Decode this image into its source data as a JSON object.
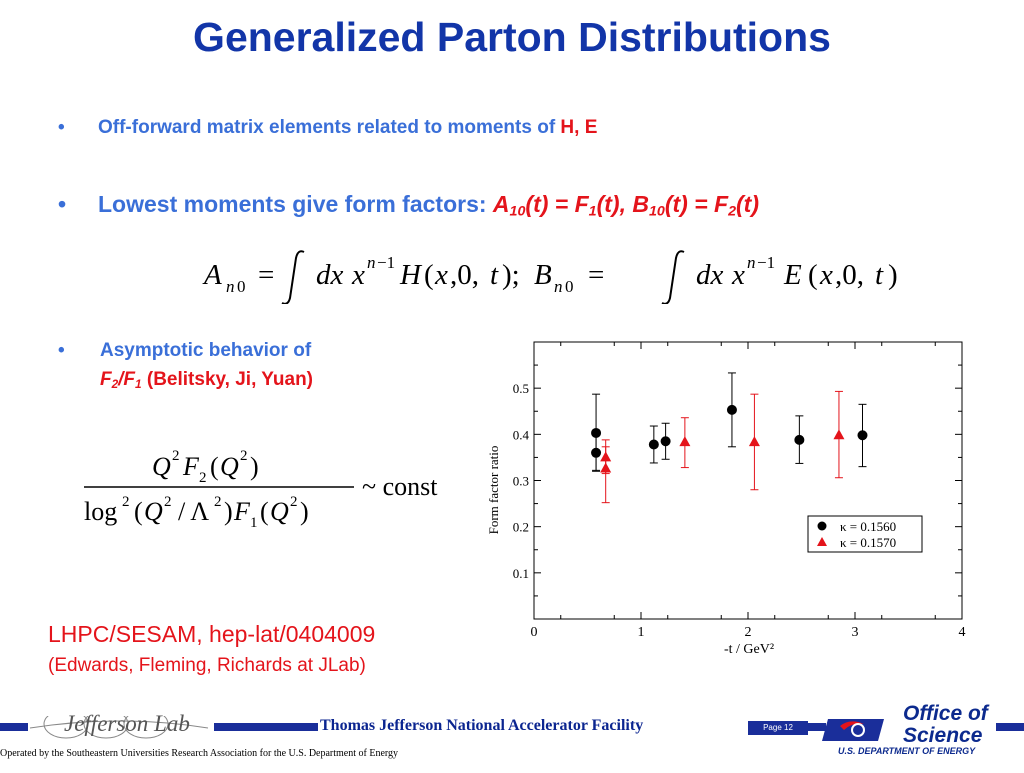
{
  "title": "Generalized Parton Distributions",
  "bullets": {
    "b1_text": "Off-forward matrix elements related to moments of ",
    "b1_red": "H, E",
    "b2_text": "Lowest moments give form factors: ",
    "b3_line1": "Asymptotic behavior of",
    "b3_paren": "(Belitsky, Ji, Yuan)"
  },
  "equation_const": "~ const",
  "references": {
    "line1": "LHPC/SESAM, hep-lat/0404009",
    "line2": "(Edwards, Fleming, Richards at JLab)"
  },
  "footer": {
    "facility": "Thomas Jefferson National Accelerator Facility",
    "page": "Page 12",
    "operated": "Operated by the Southeastern Universities Research Association for the U.S. Department of  Energy",
    "office_line1": "Office of",
    "office_line2": "Science",
    "doe": "U.S. DEPARTMENT OF ENERGY",
    "jlab": "Jefferson Lab"
  },
  "colors": {
    "title": "#1235a8",
    "bullet": "#3a6fd8",
    "accent_red": "#e4141b",
    "navy": "#1a2e9a"
  },
  "chart_data": {
    "type": "scatter",
    "xlabel": "-t / GeV²",
    "ylabel": "Form factor ratio",
    "xlim": [
      0,
      4
    ],
    "ylim": [
      0,
      0.6
    ],
    "xticks": [
      "0",
      "1",
      "2",
      "3",
      "4"
    ],
    "yticks": [
      "0.1",
      "0.2",
      "0.3",
      "0.4",
      "0.5"
    ],
    "series": [
      {
        "name": "κ = 0.1560",
        "color": "#000000",
        "marker": "circle",
        "points": [
          {
            "x": 0.58,
            "y": 0.403,
            "lo": 0.32,
            "hi": 0.487
          },
          {
            "x": 0.58,
            "y": 0.36,
            "lo": 0.322,
            "hi": 0.398
          },
          {
            "x": 1.12,
            "y": 0.378,
            "lo": 0.338,
            "hi": 0.418
          },
          {
            "x": 1.23,
            "y": 0.385,
            "lo": 0.346,
            "hi": 0.424
          },
          {
            "x": 1.85,
            "y": 0.453,
            "lo": 0.373,
            "hi": 0.533
          },
          {
            "x": 2.48,
            "y": 0.388,
            "lo": 0.337,
            "hi": 0.44
          },
          {
            "x": 3.07,
            "y": 0.398,
            "lo": 0.33,
            "hi": 0.465
          }
        ]
      },
      {
        "name": "κ = 0.1570",
        "color": "#e4141b",
        "marker": "triangle",
        "points": [
          {
            "x": 0.67,
            "y": 0.35,
            "lo": 0.315,
            "hi": 0.388
          },
          {
            "x": 0.67,
            "y": 0.326,
            "lo": 0.252,
            "hi": 0.373
          },
          {
            "x": 1.41,
            "y": 0.383,
            "lo": 0.328,
            "hi": 0.436
          },
          {
            "x": 2.06,
            "y": 0.383,
            "lo": 0.28,
            "hi": 0.487
          },
          {
            "x": 2.85,
            "y": 0.398,
            "lo": 0.306,
            "hi": 0.493
          }
        ]
      }
    ]
  }
}
